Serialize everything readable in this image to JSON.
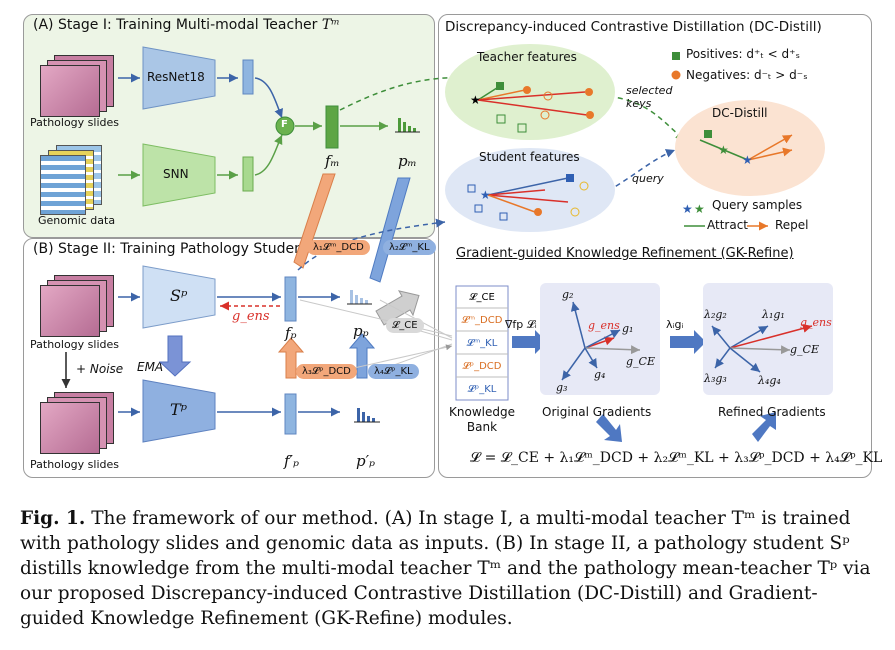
{
  "stage1": {
    "title": "(A) Stage I: Training Multi-modal Teacher ",
    "teacher_symbol": "Tᵐ",
    "pathology_label": "Pathology slides",
    "genomic_label": "Genomic data",
    "resnet_label": "ResNet18",
    "snn_label": "SNN",
    "fusion_label": "F",
    "fm_label": "fₘ",
    "pm_label": "pₘ"
  },
  "stage2": {
    "title": "(B) Stage II: Training Pathology Student",
    "pathology_label_top": "Pathology slides",
    "pathology_label_bottom": "Pathology slides",
    "noise_label": "+ Noise",
    "ema_label": "EMA",
    "student_symbol": "Sᵖ",
    "teacher_symbol": "Tᵖ",
    "gens_label": "g_ens",
    "fp_label": "fₚ",
    "pp_label": "pₚ",
    "fp_prime_label": "f′ₚ",
    "pp_prime_label": "p′ₚ",
    "loss_dcd_m": "λ₁𝓛ᵐ_DCD",
    "loss_kl_m": "λ₂𝓛ᵐ_KL",
    "loss_ce": "𝓛_CE",
    "loss_dcd_p": "λ₃𝓛ᵖ_DCD",
    "loss_kl_p": "λ₄𝓛ᵖ_KL"
  },
  "dc_distill": {
    "title": "Discrepancy-induced Contrastive Distillation (DC-Distill)",
    "teacher_features_label": "Teacher features",
    "student_features_label": "Student features",
    "dc_distill_label": "DC-Distill",
    "selected_keys_label": "selected keys",
    "query_label": "query",
    "positives_legend": "Positives: d⁺ₜ < d⁺ₛ",
    "negatives_legend": "Negatives: d⁻ₜ > d⁻ₛ",
    "query_samples_legend": "Query samples",
    "attract_legend": "Attract",
    "repel_legend": "Repel"
  },
  "gk_refine": {
    "title": "Gradient-guided Knowledge Refinement (GK-Refine)",
    "bank_items": [
      "𝓛_CE",
      "𝓛ᵐ_DCD",
      "𝓛ᵐ_KL",
      "𝓛ᵖ_DCD",
      "𝓛ᵖ_KL"
    ],
    "bank_label": "Knowledge Bank",
    "grad_op_label": "∇fp 𝓛ᵢ",
    "scale_op_label": "λᵢgᵢ",
    "original_label": "Original Gradients",
    "refined_label": "Refined Gradients",
    "orig_vectors": [
      "g₂",
      "g_ens",
      "g₁",
      "g_CE",
      "g₄",
      "g₃"
    ],
    "ref_vectors": [
      "λ₂g₂",
      "λ₁g₁",
      "g_ens",
      "g_CE",
      "λ₃g₃",
      "λ₄g₄"
    ],
    "total_loss": "𝓛 = 𝓛_CE + λ₁𝓛ᵐ_DCD + λ₂𝓛ᵐ_KL + λ₃𝓛ᵖ_DCD + λ₄𝓛ᵖ_KL"
  },
  "caption": {
    "fig": "Fig. 1.",
    "text": "The framework of our method. (A) In stage I, a multi-modal teacher Tᵐ is trained with pathology slides and genomic data as inputs. (B) In stage II, a pathology student Sᵖ distills knowledge from the multi-modal teacher Tᵐ and the pathology mean-teacher Tᵖ via our proposed Discrepancy-induced Contrastive Distillation (DC-Distill) and Gradient-guided Knowledge Refinement (GK-Refine) modules."
  },
  "colors": {
    "green": "#3e8e3a",
    "blue": "#2f5fb3",
    "orange": "#e8782a",
    "red": "#d9302a"
  }
}
